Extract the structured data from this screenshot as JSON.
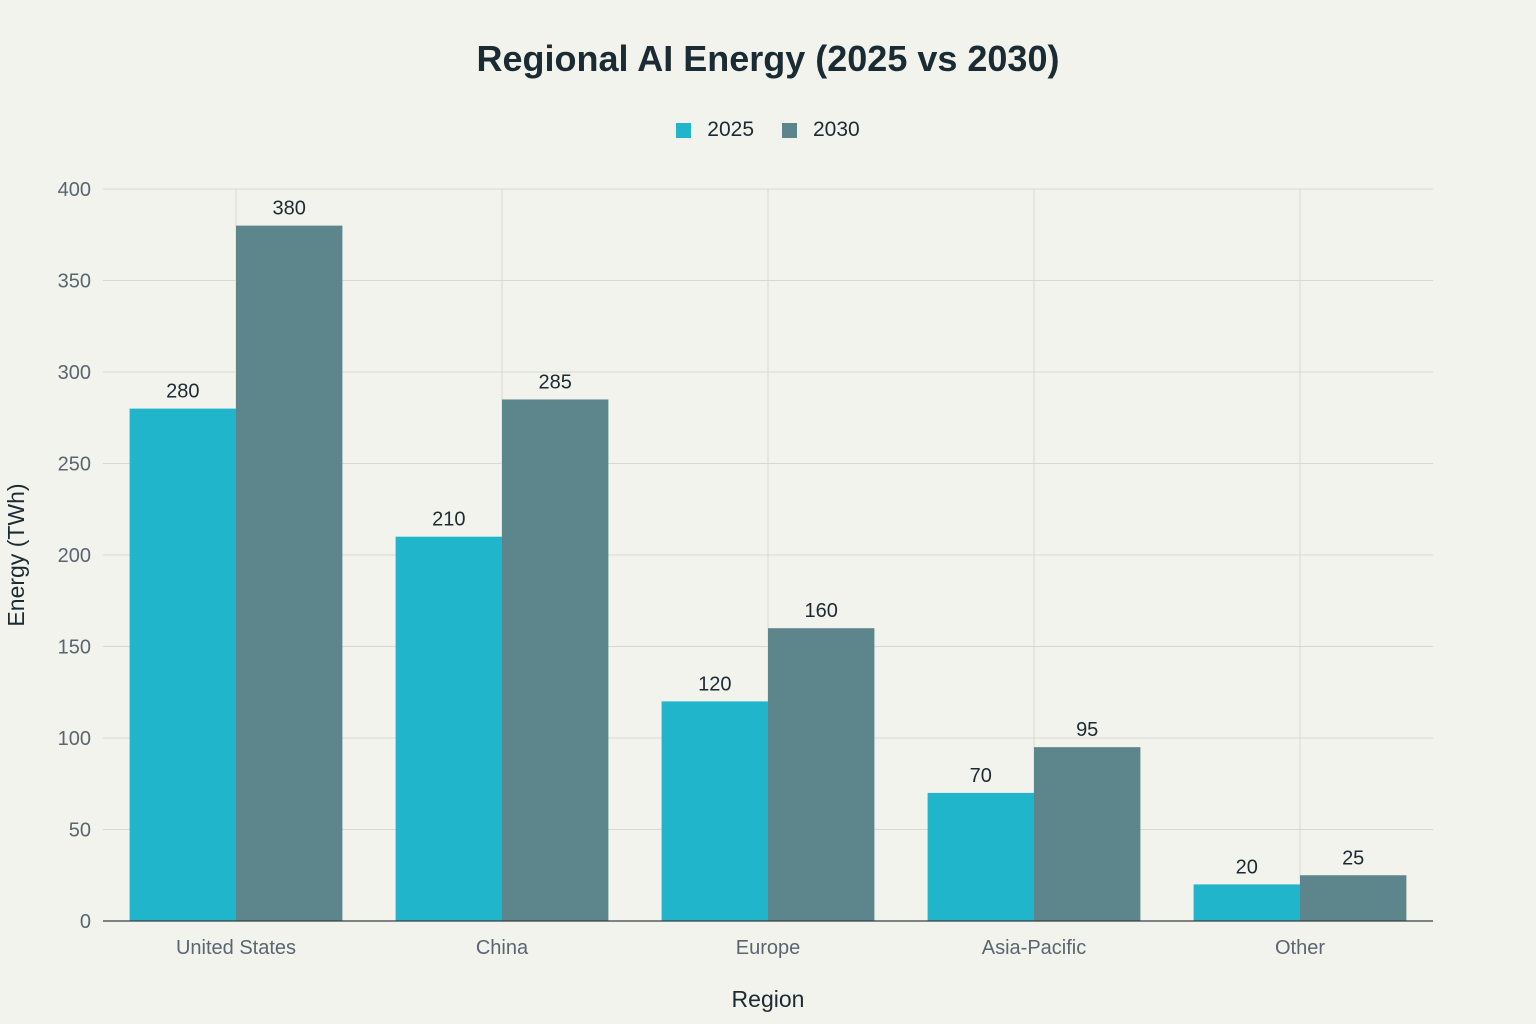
{
  "chart_data": {
    "type": "bar",
    "title": "Regional AI Energy (2025 vs 2030)",
    "xlabel": "Region",
    "ylabel": "Energy (TWh)",
    "categories": [
      "United States",
      "China",
      "Europe",
      "Asia-Pacific",
      "Other"
    ],
    "series": [
      {
        "name": "2025",
        "color": "#20b5cb",
        "values": [
          280,
          210,
          120,
          70,
          20
        ]
      },
      {
        "name": "2030",
        "color": "#5d858c",
        "values": [
          380,
          285,
          160,
          95,
          25
        ]
      }
    ],
    "ylim": [
      0,
      400
    ],
    "yticks": [
      0,
      50,
      100,
      150,
      200,
      250,
      300,
      350,
      400
    ],
    "grid": true,
    "legend_position": "top-center",
    "background_color": "#f3f3ed"
  }
}
